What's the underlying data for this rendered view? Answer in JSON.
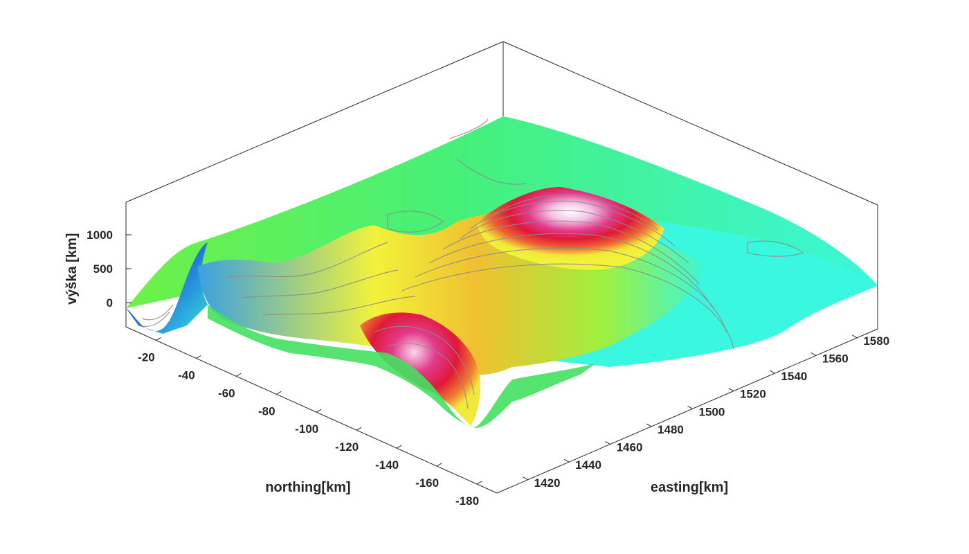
{
  "chart_data": {
    "type": "surface3d",
    "title": "",
    "xlabel": "easting[km]",
    "ylabel": "northing[km]",
    "zlabel": "výška [km]",
    "x_ticks": [
      1420,
      1440,
      1460,
      1480,
      1500,
      1520,
      1540,
      1560,
      1580
    ],
    "y_ticks": [
      -20,
      -40,
      -60,
      -80,
      -100,
      -120,
      -140,
      -160,
      -180
    ],
    "z_ticks": [
      0,
      500,
      1000
    ],
    "xlim": [
      1405,
      1590
    ],
    "ylim": [
      -190,
      -5
    ],
    "zlim": [
      -400,
      1400
    ],
    "colormap": [
      "#2a0a8a",
      "#1f5fd6",
      "#33e0e0",
      "#3af7d8",
      "#45f070",
      "#9ef040",
      "#f2f23a",
      "#f0c030",
      "#f06030",
      "#e01838",
      "#e23a8a",
      "#f4c4e4",
      "#ffffff"
    ],
    "features": [
      {
        "name": "central-peak",
        "x": 1510,
        "y": -95,
        "z": 1100
      },
      {
        "name": "lower-peak",
        "x": 1440,
        "y": -130,
        "z": 900
      },
      {
        "name": "valley",
        "x": 1410,
        "y": -15,
        "z": -300
      },
      {
        "name": "plateau",
        "x": 1560,
        "y": -60,
        "z": 400
      }
    ],
    "contour_color": "#8c8c8c",
    "grid": false,
    "box": true
  }
}
